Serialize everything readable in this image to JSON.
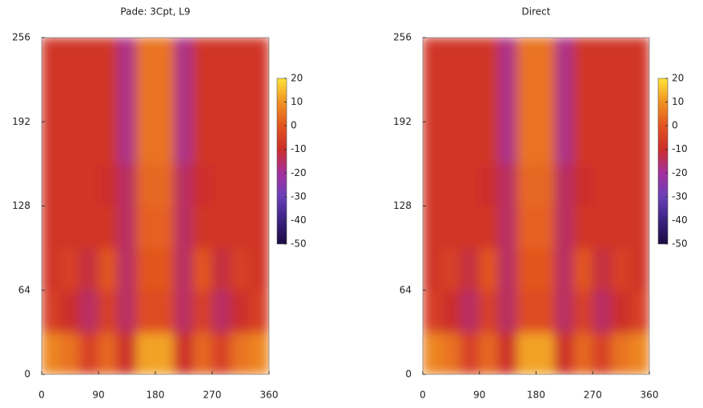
{
  "chart_data": [
    {
      "type": "heatmap",
      "title": "Pade: 3Cpt, L9",
      "xbins": [
        0,
        30,
        60,
        90,
        120,
        150,
        180,
        210,
        240,
        270,
        300,
        330,
        360
      ],
      "ybins": [
        0,
        32,
        64,
        96,
        128,
        160,
        192,
        224,
        256
      ],
      "z": [
        [
          8,
          5,
          -5,
          3,
          -10,
          12,
          12,
          -10,
          3,
          -5,
          5,
          8
        ],
        [
          -5,
          -10,
          -15,
          -5,
          -15,
          -2,
          -2,
          -15,
          -5,
          -15,
          -10,
          -5
        ],
        [
          -8,
          -5,
          -12,
          0,
          -15,
          0,
          0,
          -15,
          0,
          -12,
          -5,
          -8
        ],
        [
          -8,
          -8,
          -8,
          -8,
          -15,
          2,
          2,
          -15,
          -8,
          -8,
          -8,
          -8
        ],
        [
          -8,
          -8,
          -8,
          -10,
          -15,
          3,
          3,
          -15,
          -10,
          -8,
          -8,
          -8
        ],
        [
          -8,
          -8,
          -8,
          -8,
          -18,
          5,
          5,
          -18,
          -8,
          -8,
          -8,
          -8
        ],
        [
          -8,
          -8,
          -8,
          -8,
          -18,
          5,
          5,
          -18,
          -8,
          -8,
          -8,
          -8
        ],
        [
          -8,
          -8,
          -8,
          -8,
          -18,
          5,
          5,
          -18,
          -8,
          -8,
          -8,
          -8
        ]
      ],
      "xlim": [
        0,
        360
      ],
      "xticks": [
        0,
        90,
        180,
        270,
        360
      ],
      "ylim": [
        0,
        256
      ],
      "yticks": [
        0,
        64,
        128,
        192,
        256
      ],
      "zlim": [
        -50,
        20
      ],
      "zticks": [
        -50,
        -40,
        -30,
        -20,
        -10,
        0,
        10,
        20
      ],
      "colormap": [
        "#1c0b40",
        "#3a2280",
        "#6a40b8",
        "#a4309e",
        "#cc2e2a",
        "#e2541f",
        "#f09222",
        "#ffe43a"
      ]
    },
    {
      "type": "heatmap",
      "title": "Direct",
      "xbins": [
        0,
        30,
        60,
        90,
        120,
        150,
        180,
        210,
        240,
        270,
        300,
        330,
        360
      ],
      "ybins": [
        0,
        32,
        64,
        96,
        128,
        160,
        192,
        224,
        256
      ],
      "z": [
        [
          8,
          5,
          -5,
          3,
          -10,
          12,
          12,
          -10,
          3,
          -5,
          5,
          8
        ],
        [
          -5,
          -10,
          -15,
          -5,
          -15,
          -2,
          -2,
          -15,
          -5,
          -15,
          -10,
          -5
        ],
        [
          -8,
          -5,
          -12,
          0,
          -15,
          0,
          0,
          -15,
          0,
          -12,
          -5,
          -8
        ],
        [
          -8,
          -8,
          -8,
          -8,
          -15,
          2,
          2,
          -15,
          -8,
          -8,
          -8,
          -8
        ],
        [
          -8,
          -8,
          -8,
          -10,
          -15,
          3,
          3,
          -15,
          -10,
          -8,
          -8,
          -8
        ],
        [
          -8,
          -8,
          -8,
          -8,
          -18,
          5,
          5,
          -18,
          -8,
          -8,
          -8,
          -8
        ],
        [
          -8,
          -8,
          -8,
          -8,
          -18,
          5,
          5,
          -18,
          -8,
          -8,
          -8,
          -8
        ],
        [
          -8,
          -8,
          -8,
          -8,
          -18,
          5,
          5,
          -18,
          -8,
          -8,
          -8,
          -8
        ]
      ],
      "xlim": [
        0,
        360
      ],
      "xticks": [
        0,
        90,
        180,
        270,
        360
      ],
      "ylim": [
        0,
        256
      ],
      "yticks": [
        0,
        64,
        128,
        192,
        256
      ],
      "zlim": [
        -50,
        20
      ],
      "zticks": [
        -50,
        -40,
        -30,
        -20,
        -10,
        0,
        10,
        20
      ],
      "colormap": [
        "#1c0b40",
        "#3a2280",
        "#6a40b8",
        "#a4309e",
        "#cc2e2a",
        "#e2541f",
        "#f09222",
        "#ffe43a"
      ]
    }
  ]
}
